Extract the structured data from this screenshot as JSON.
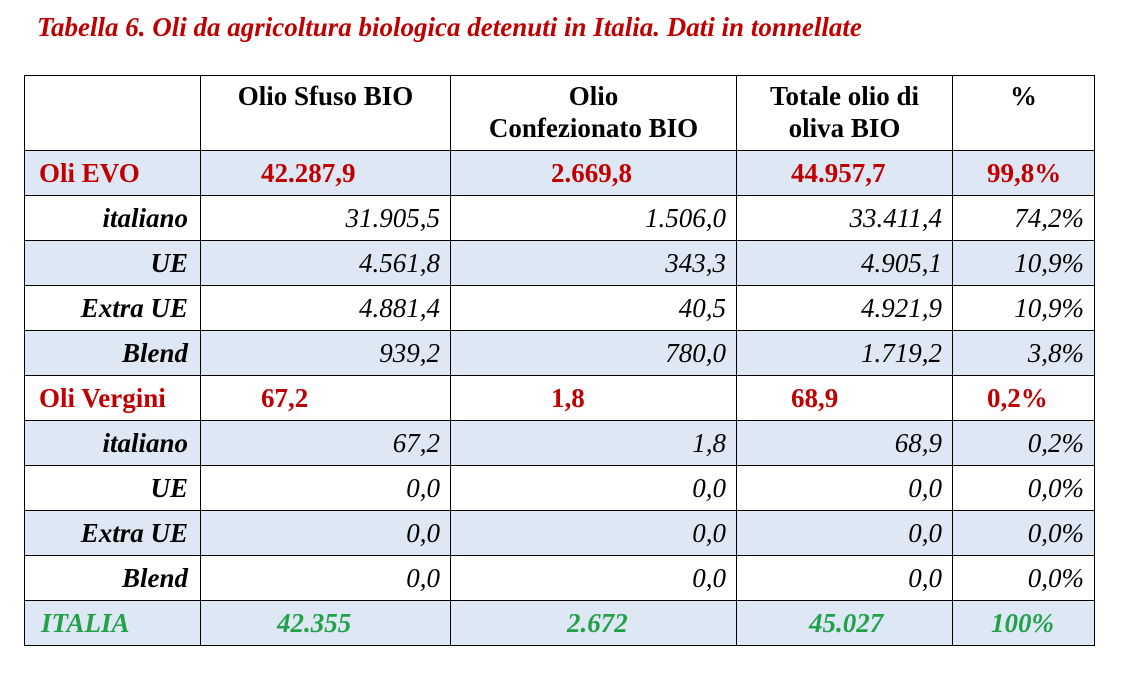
{
  "title": "Tabella 6. Oli da agricoltura biologica detenuti in Italia. Dati in tonnellate",
  "headers": [
    "",
    "Olio Sfuso BIO",
    "Olio\nConfezionato BIO",
    "Totale olio di\noliva BIO",
    "%"
  ],
  "rows": [
    {
      "label": "Oli EVO",
      "values": [
        "42.287,9",
        "2.669,8",
        "44.957,7",
        "99,8%"
      ]
    },
    {
      "label": "italiano",
      "values": [
        "31.905,5",
        "1.506,0",
        "33.411,4",
        "74,2%"
      ]
    },
    {
      "label": "UE",
      "values": [
        "4.561,8",
        "343,3",
        "4.905,1",
        "10,9%"
      ]
    },
    {
      "label": "Extra UE",
      "values": [
        "4.881,4",
        "40,5",
        "4.921,9",
        "10,9%"
      ]
    },
    {
      "label": "Blend",
      "values": [
        "939,2",
        "780,0",
        "1.719,2",
        "3,8%"
      ]
    },
    {
      "label": "Oli Vergini",
      "values": [
        "67,2",
        "1,8",
        "68,9",
        "0,2%"
      ]
    },
    {
      "label": "italiano",
      "values": [
        "67,2",
        "1,8",
        "68,9",
        "0,2%"
      ]
    },
    {
      "label": "UE",
      "values": [
        "0,0",
        "0,0",
        "0,0",
        "0,0%"
      ]
    },
    {
      "label": "Extra UE",
      "values": [
        "0,0",
        "0,0",
        "0,0",
        "0,0%"
      ]
    },
    {
      "label": "Blend",
      "values": [
        "0,0",
        "0,0",
        "0,0",
        "0,0%"
      ]
    },
    {
      "label": "ITALIA",
      "values": [
        "42.355",
        "2.672",
        "45.027",
        "100%"
      ]
    }
  ]
}
